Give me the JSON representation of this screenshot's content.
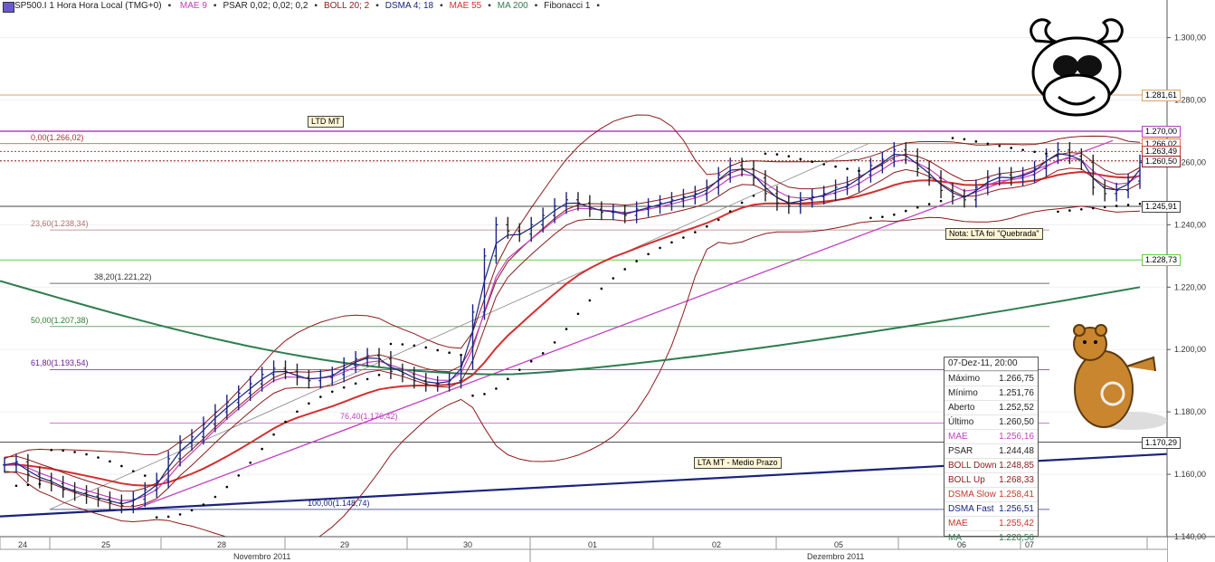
{
  "header": {
    "symbol": "SP500.I 1 Hora Hora Local (TMG+0)",
    "indicators": [
      {
        "label": "MAE 9",
        "color": "#c040c0"
      },
      {
        "label": "PSAR 0,02; 0,02; 0,2",
        "color": "#222222"
      },
      {
        "label": "BOLL 20; 2",
        "color": "#8b1a1a"
      },
      {
        "label": "DSMA 4; 18",
        "color": "#1a237e"
      },
      {
        "label": "MAE 55",
        "color": "#d32f2f"
      },
      {
        "label": "MA 200",
        "color": "#2e7d4f"
      },
      {
        "label": "Fibonacci 1",
        "color": "#222222"
      }
    ]
  },
  "chart_data": {
    "type": "candlestick",
    "title": "SP500.I 1 Hora",
    "ylim": [
      1140,
      1308
    ],
    "y_ticks": [
      "1.140,00",
      "1.160,00",
      "1.180,00",
      "1.200,00",
      "1.220,00",
      "1.240,00",
      "1.260,00",
      "1.280,00",
      "1.300,00"
    ],
    "y_tick_values": [
      1140,
      1160,
      1180,
      1200,
      1220,
      1240,
      1260,
      1280,
      1300
    ],
    "x_day_labels": [
      "24",
      "25",
      "28",
      "29",
      "30",
      "01",
      "02",
      "05",
      "06",
      "07"
    ],
    "x_month_labels": [
      "Novembro 2011",
      "Dezembro 2011"
    ],
    "price_series": [
      {
        "name": "Close",
        "values": [
          1163,
          1164,
          1160,
          1158,
          1157,
          1155,
          1154,
          1153,
          1152,
          1151,
          1150,
          1152,
          1155,
          1158,
          1165,
          1170,
          1172,
          1176,
          1180,
          1183,
          1186,
          1189,
          1192,
          1194,
          1193,
          1191,
          1190,
          1191,
          1192,
          1195,
          1197,
          1198,
          1197,
          1193,
          1192,
          1190,
          1189,
          1189,
          1190,
          1196,
          1212,
          1230,
          1240,
          1238,
          1237,
          1240,
          1243,
          1246,
          1248,
          1247,
          1245,
          1244,
          1244,
          1243,
          1245,
          1246,
          1247,
          1248,
          1249,
          1250,
          1252,
          1256,
          1259,
          1258,
          1255,
          1250,
          1247,
          1246,
          1248,
          1249,
          1250,
          1252,
          1253,
          1256,
          1259,
          1261,
          1264,
          1262,
          1258,
          1255,
          1251,
          1249,
          1248,
          1252,
          1255,
          1256,
          1255,
          1256,
          1258,
          1262,
          1264,
          1262,
          1260,
          1252,
          1250,
          1251,
          1254,
          1260
        ]
      },
      {
        "name": "MAE",
        "values": [
          1256.16
        ]
      },
      {
        "name": "BOLL Down",
        "values": [
          1248.85
        ]
      },
      {
        "name": "BOLL Up",
        "values": [
          1268.33
        ]
      },
      {
        "name": "DSMA Slow",
        "values": [
          1258.41
        ]
      },
      {
        "name": "DSMA Fast",
        "values": [
          1256.51
        ]
      },
      {
        "name": "MA",
        "values": [
          1220.56
        ]
      }
    ],
    "horizontal_levels": [
      {
        "label": "1.281,61",
        "value": 1281.61,
        "color": "#e0a060"
      },
      {
        "label": "1.270,00",
        "value": 1270.0,
        "color": "#b040c0"
      },
      {
        "label": "1.266,02",
        "value": 1266.02,
        "color": "#e07a40"
      },
      {
        "label": "1.263,49",
        "value": 1263.49,
        "color": "#c0392b"
      },
      {
        "label": "1.260,50",
        "value": 1260.5,
        "color": "#8b1a1a"
      },
      {
        "label": "1.245,91",
        "value": 1245.91,
        "color": "#444444"
      },
      {
        "label": "1.228,73",
        "value": 1228.73,
        "color": "#66cc44"
      },
      {
        "label": "1.170,29",
        "value": 1170.29,
        "color": "#444444"
      }
    ],
    "fibonacci": [
      {
        "label": "0,00(1.266,02)",
        "value": 1266.02,
        "color": "#b03030"
      },
      {
        "label": "23,60(1.238,34)",
        "value": 1238.34,
        "color": "#b07070"
      },
      {
        "label": "38,20(1.221,22)",
        "value": 1221.22,
        "color": "#333333"
      },
      {
        "label": "50,00(1.207,38)",
        "value": 1207.38,
        "color": "#2e7d32"
      },
      {
        "label": "61,80(1.193,54)",
        "value": 1193.54,
        "color": "#6a1b9a"
      },
      {
        "label": "76,40(1.176,42)",
        "value": 1176.42,
        "color": "#c040c0"
      },
      {
        "label": "100,00(1.148,74)",
        "value": 1148.74,
        "color": "#1a237e"
      }
    ],
    "annotations": [
      "LTD MT",
      "Nota: LTA foi \"Quebrada\"",
      "LTA MT - Medio Prazo"
    ]
  },
  "infobox": {
    "title": "07-Dez-11, 20:00",
    "rows": [
      {
        "label": "Máximo",
        "value": "1.266,75",
        "color": "#222222"
      },
      {
        "label": "Mínimo",
        "value": "1.251,76",
        "color": "#222222"
      },
      {
        "label": "Aberto",
        "value": "1.252,52",
        "color": "#222222"
      },
      {
        "label": "Último",
        "value": "1.260,50",
        "color": "#222222"
      },
      {
        "label": "MAE",
        "value": "1.256,16",
        "color": "#c040c0"
      },
      {
        "label": "PSAR",
        "value": "1.244,48",
        "color": "#222222"
      },
      {
        "label": "BOLL Down",
        "value": "1.248,85",
        "color": "#8b1a1a"
      },
      {
        "label": "BOLL Up",
        "value": "1.268,33",
        "color": "#8b1a1a"
      },
      {
        "label": "DSMA Slow",
        "value": "1.258,41",
        "color": "#c0392b"
      },
      {
        "label": "DSMA Fast",
        "value": "1.256,51",
        "color": "#1a237e"
      },
      {
        "label": "MAE",
        "value": "1.255,42",
        "color": "#d32f2f"
      },
      {
        "label": "MA",
        "value": "1.220,56",
        "color": "#2e7d4f"
      }
    ]
  }
}
